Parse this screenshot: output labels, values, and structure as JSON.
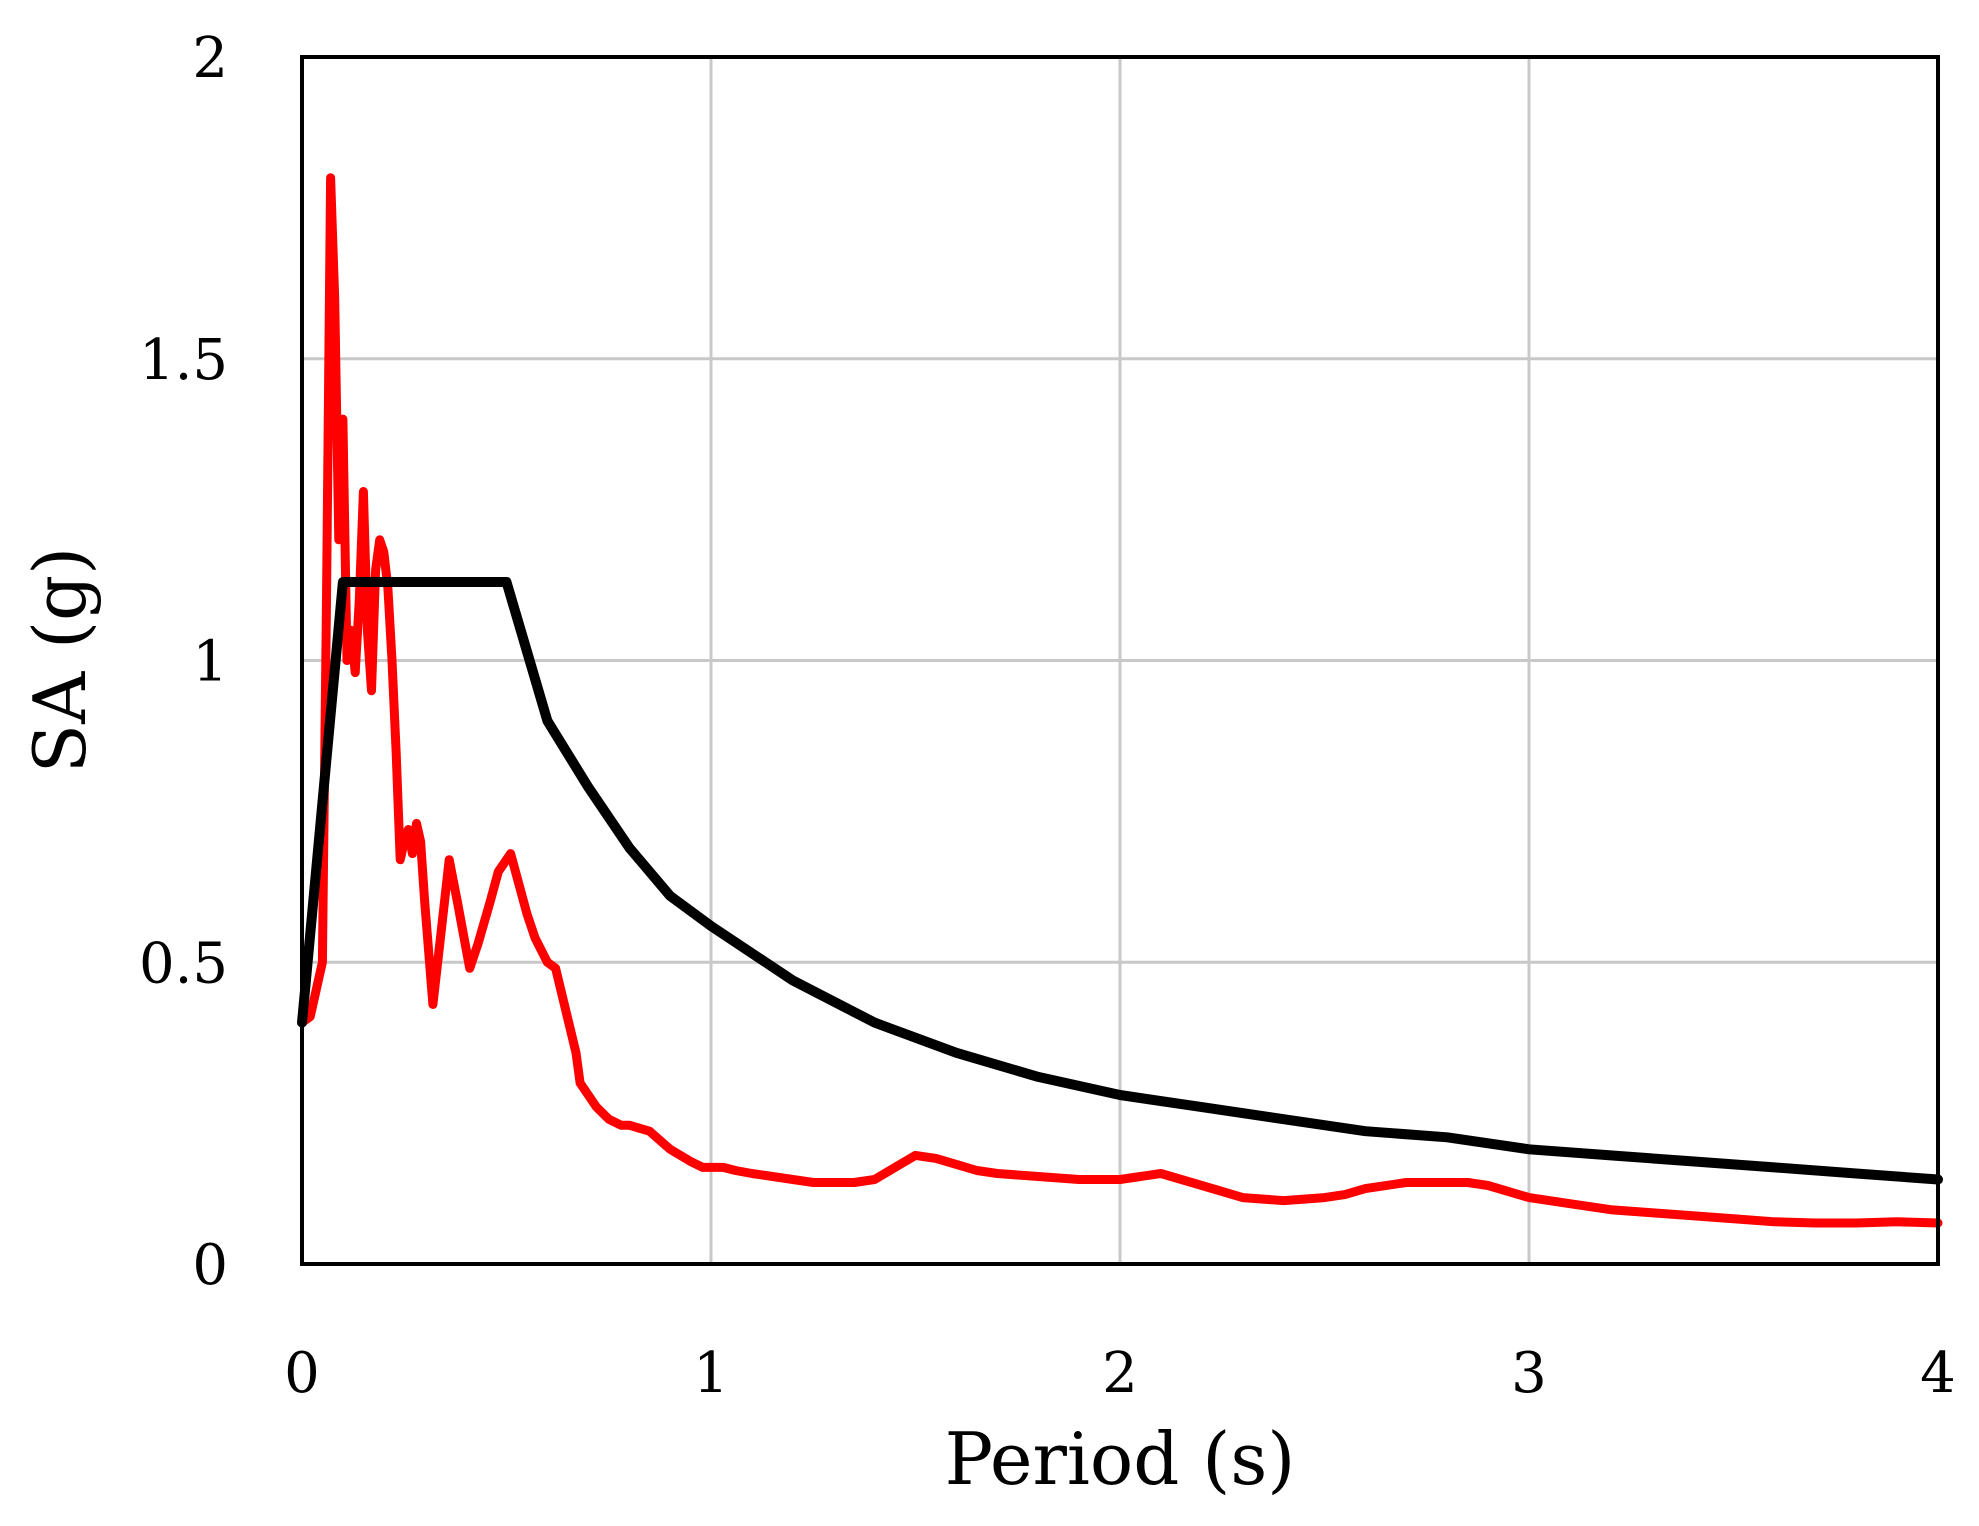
{
  "chart_data": {
    "type": "line",
    "title": "",
    "xlabel": "Period (s)",
    "ylabel": "SA (g)",
    "xlim": [
      0,
      4
    ],
    "ylim": [
      0,
      2
    ],
    "x_ticks": [
      "0",
      "1",
      "2",
      "3",
      "4"
    ],
    "y_ticks": [
      "0",
      "0.5",
      "1",
      "1.5",
      "2"
    ],
    "grid": true,
    "legend": "none",
    "series": [
      {
        "color": "#ff0000",
        "x": [
          0.0,
          0.02,
          0.05,
          0.06,
          0.07,
          0.08,
          0.09,
          0.1,
          0.11,
          0.12,
          0.13,
          0.14,
          0.15,
          0.16,
          0.17,
          0.18,
          0.19,
          0.2,
          0.21,
          0.22,
          0.23,
          0.24,
          0.25,
          0.26,
          0.27,
          0.28,
          0.29,
          0.3,
          0.32,
          0.34,
          0.36,
          0.38,
          0.41,
          0.43,
          0.46,
          0.48,
          0.51,
          0.55,
          0.57,
          0.6,
          0.62,
          0.67,
          0.68,
          0.72,
          0.75,
          0.78,
          0.8,
          0.85,
          0.9,
          0.95,
          0.98,
          1.0,
          1.03,
          1.06,
          1.1,
          1.2,
          1.25,
          1.3,
          1.35,
          1.4,
          1.45,
          1.5,
          1.55,
          1.6,
          1.65,
          1.7,
          1.8,
          1.9,
          2.0,
          2.05,
          2.1,
          2.2,
          2.3,
          2.4,
          2.5,
          2.55,
          2.6,
          2.7,
          2.8,
          2.85,
          2.9,
          3.0,
          3.1,
          3.2,
          3.3,
          3.4,
          3.5,
          3.6,
          3.7,
          3.8,
          3.9,
          4.0
        ],
        "y": [
          0.4,
          0.41,
          0.5,
          1.1,
          1.8,
          1.6,
          1.2,
          1.4,
          1.0,
          1.05,
          0.98,
          1.1,
          1.28,
          1.05,
          0.95,
          1.15,
          1.2,
          1.18,
          1.12,
          1.0,
          0.85,
          0.67,
          0.7,
          0.72,
          0.68,
          0.73,
          0.7,
          0.6,
          0.43,
          0.55,
          0.67,
          0.6,
          0.49,
          0.53,
          0.6,
          0.65,
          0.68,
          0.58,
          0.54,
          0.5,
          0.49,
          0.35,
          0.3,
          0.26,
          0.24,
          0.23,
          0.23,
          0.22,
          0.19,
          0.17,
          0.16,
          0.16,
          0.16,
          0.155,
          0.15,
          0.14,
          0.135,
          0.135,
          0.135,
          0.14,
          0.16,
          0.18,
          0.175,
          0.165,
          0.155,
          0.15,
          0.145,
          0.14,
          0.14,
          0.145,
          0.15,
          0.13,
          0.11,
          0.105,
          0.11,
          0.115,
          0.125,
          0.135,
          0.135,
          0.135,
          0.13,
          0.11,
          0.1,
          0.09,
          0.085,
          0.08,
          0.075,
          0.07,
          0.068,
          0.068,
          0.07,
          0.068
        ]
      },
      {
        "color": "#000000",
        "x": [
          0.0,
          0.1,
          0.5,
          0.6,
          0.7,
          0.8,
          0.9,
          1.0,
          1.2,
          1.4,
          1.6,
          1.8,
          2.0,
          2.2,
          2.4,
          2.6,
          2.8,
          3.0,
          3.2,
          3.4,
          3.6,
          3.8,
          4.0
        ],
        "y": [
          0.4,
          1.13,
          1.13,
          0.9,
          0.79,
          0.69,
          0.61,
          0.56,
          0.47,
          0.4,
          0.35,
          0.31,
          0.28,
          0.26,
          0.24,
          0.22,
          0.21,
          0.19,
          0.18,
          0.17,
          0.16,
          0.15,
          0.14
        ]
      }
    ]
  }
}
